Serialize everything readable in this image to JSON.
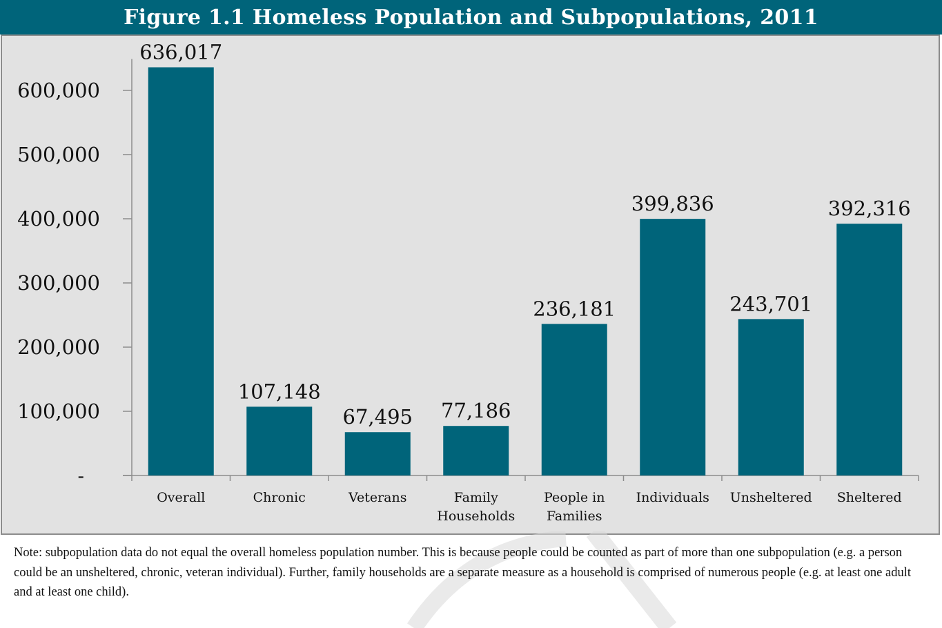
{
  "title": "Figure 1.1 Homeless Population and Subpopulations, 2011",
  "colors": {
    "bar": "#00647a",
    "title_bar": "#00647a",
    "plot_background": "#e2e2e2",
    "axis": "#8c8c8c"
  },
  "chart_data": {
    "type": "bar",
    "title": "Figure 1.1 Homeless Population and Subpopulations, 2011",
    "xlabel": "",
    "ylabel": "",
    "ylim": [
      0,
      636017
    ],
    "grid": false,
    "legend": "none",
    "categories": [
      [
        "Overall"
      ],
      [
        "Chronic"
      ],
      [
        "Veterans"
      ],
      [
        "Family",
        "Households"
      ],
      [
        "People in",
        "Families"
      ],
      [
        "Individuals"
      ],
      [
        "Unsheltered"
      ],
      [
        "Sheltered"
      ]
    ],
    "values": [
      636017,
      107148,
      67495,
      77186,
      236181,
      399836,
      243701,
      392316
    ],
    "data_labels": [
      "636,017",
      "107,148",
      "67,495",
      "77,186",
      "236,181",
      "399,836",
      "243,701",
      "392,316"
    ],
    "y_ticks": [
      {
        "value": 0,
        "label": "-"
      },
      {
        "value": 100000,
        "label": "100,000"
      },
      {
        "value": 200000,
        "label": "200,000"
      },
      {
        "value": 300000,
        "label": "300,000"
      },
      {
        "value": 400000,
        "label": "400,000"
      },
      {
        "value": 500000,
        "label": "500,000"
      },
      {
        "value": 600000,
        "label": "600,000"
      }
    ]
  },
  "note": "Note: subpopulation data do not equal the overall homeless population number. This is because people could be counted as part of more than one subpopulation (e.g. a person could be an unsheltered, chronic, veteran individual). Further, family households are a separate measure as a household is comprised of numerous people (e.g. at least one adult and at least one child)."
}
